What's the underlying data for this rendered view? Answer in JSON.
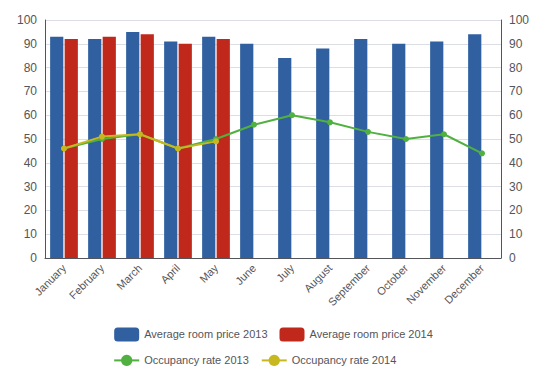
{
  "chart_data": {
    "type": "bar",
    "categories": [
      "January",
      "February",
      "March",
      "April",
      "May",
      "June",
      "July",
      "August",
      "September",
      "October",
      "November",
      "December"
    ],
    "series": [
      {
        "name": "Average room price 2013",
        "type": "bar",
        "color": "#3060a0",
        "values": [
          93,
          92,
          95,
          91,
          93,
          90,
          84,
          88,
          92,
          90,
          91,
          94
        ]
      },
      {
        "name": "Average room price 2014",
        "type": "bar",
        "color": "#c0281c",
        "values": [
          92,
          93,
          94,
          90,
          92,
          null,
          null,
          null,
          null,
          null,
          null,
          null
        ]
      },
      {
        "name": "Occupancy rate 2013",
        "type": "line",
        "axis": "y2",
        "color": "#50b040",
        "marker": "circle",
        "values": [
          46,
          50,
          52,
          46,
          50,
          56,
          60,
          57,
          53,
          50,
          52,
          44
        ]
      },
      {
        "name": "Occupancy rate 2014",
        "type": "line",
        "axis": "y2",
        "color": "#c8b820",
        "marker": "circle",
        "values": [
          46,
          51,
          52,
          46,
          49,
          null,
          null,
          null,
          null,
          null,
          null,
          null
        ]
      }
    ],
    "ylim": [
      0,
      100
    ],
    "yticks": [
      0,
      10,
      20,
      30,
      40,
      50,
      60,
      70,
      80,
      90,
      100
    ],
    "y2lim": [
      0,
      100
    ],
    "y2ticks": [
      0,
      10,
      20,
      30,
      40,
      50,
      60,
      70,
      80,
      90,
      100
    ],
    "grid": true,
    "legend": "bottom"
  }
}
